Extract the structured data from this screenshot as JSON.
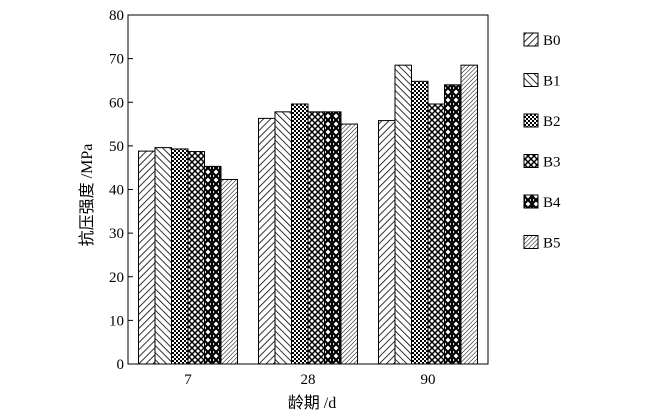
{
  "chart_data": {
    "type": "bar",
    "title": "",
    "xlabel": "龄期 /d",
    "ylabel": "抗压强度 /MPa",
    "categories": [
      "7",
      "28",
      "90"
    ],
    "ylim": [
      0,
      80
    ],
    "yticks": [
      0,
      10,
      20,
      30,
      40,
      50,
      60,
      70,
      80
    ],
    "grid": false,
    "legend_position": "right",
    "series": [
      {
        "name": "B0",
        "values": [
          48.8,
          56.3,
          55.8
        ],
        "pattern": "diagonal-forward"
      },
      {
        "name": "B1",
        "values": [
          49.6,
          57.8,
          68.5
        ],
        "pattern": "diagonal-back"
      },
      {
        "name": "B2",
        "values": [
          49.3,
          59.6,
          64.8
        ],
        "pattern": "cross-hatch-dense"
      },
      {
        "name": "B3",
        "values": [
          48.7,
          57.8,
          59.6
        ],
        "pattern": "cross-hatch"
      },
      {
        "name": "B4",
        "values": [
          45.3,
          57.8,
          64.0
        ],
        "pattern": "diamond-weave"
      },
      {
        "name": "B5",
        "values": [
          42.3,
          55.0,
          68.5
        ],
        "pattern": "diagonal-forward-dense"
      }
    ]
  }
}
